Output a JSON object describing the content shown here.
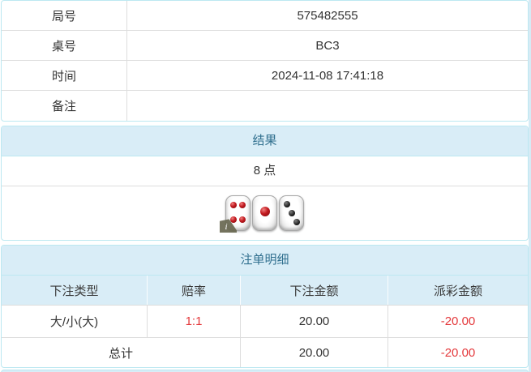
{
  "info_table": {
    "rows": [
      {
        "label": "局号",
        "value": "575482555"
      },
      {
        "label": "桌号",
        "value": "BC3"
      },
      {
        "label": "时间",
        "value": "2024-11-08 17:41:18"
      },
      {
        "label": "备注",
        "value": ""
      }
    ]
  },
  "result_panel": {
    "title": "结果",
    "points": "8 点",
    "dice": [
      {
        "name": "die-four-red",
        "pip_style": "red",
        "pip_size": 8,
        "pips": [
          [
            31,
            27
          ],
          [
            69,
            27
          ],
          [
            31,
            69
          ],
          [
            69,
            69
          ]
        ]
      },
      {
        "name": "die-one-red",
        "pip_style": "red",
        "pip_size": 12,
        "pips": [
          [
            50,
            46
          ]
        ]
      },
      {
        "name": "die-three-black",
        "pip_style": "black",
        "pip_size": 8,
        "pips": [
          [
            30,
            24
          ],
          [
            50,
            50
          ],
          [
            71,
            75
          ]
        ]
      }
    ],
    "info_badge_glyph": "i"
  },
  "bet_panel": {
    "title": "注单明细",
    "columns": [
      "下注类型",
      "赔率",
      "下注金额",
      "派彩金额"
    ],
    "rows": [
      {
        "type": "大/小(大)",
        "odds": "1:1",
        "bet": "20.00",
        "payout": "-20.00"
      }
    ],
    "total": {
      "label": "总计",
      "bet": "20.00",
      "payout": "-20.00"
    }
  },
  "colors": {
    "panel_border": "#bce8f1",
    "heading_bg": "#d9edf7",
    "heading_text": "#31708f",
    "divider": "#dddddd",
    "text": "#333333",
    "red": "#e4393c",
    "page_bg": "#d6ebf5"
  }
}
